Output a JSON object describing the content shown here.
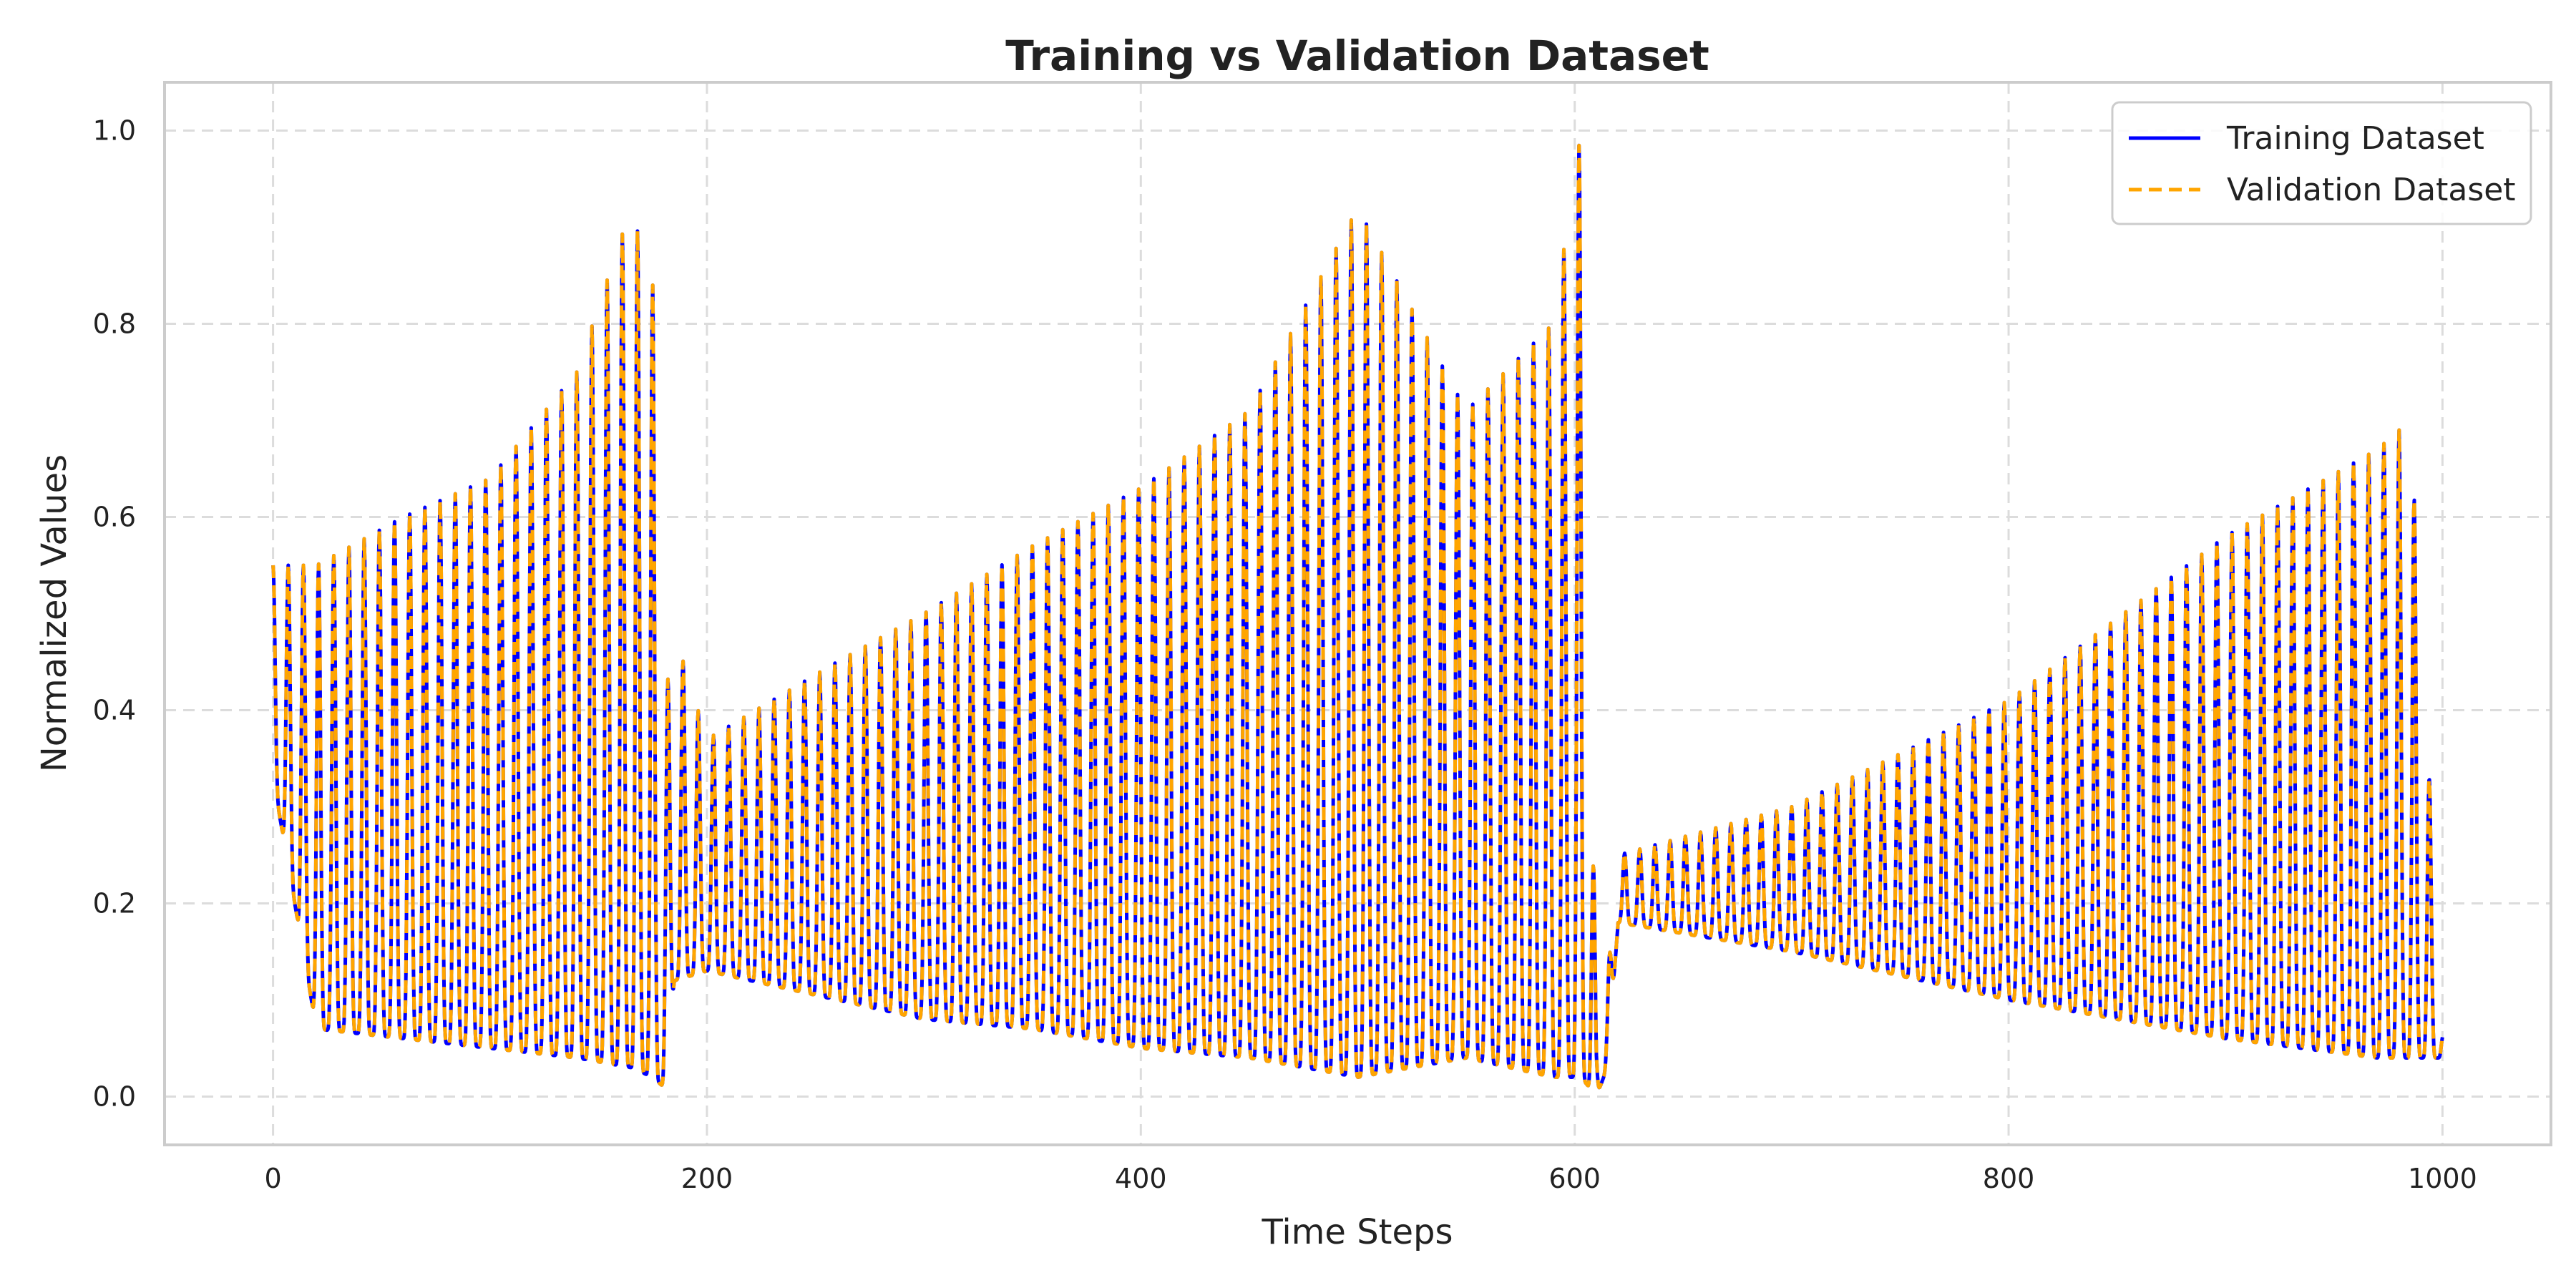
{
  "chart_data": {
    "type": "line",
    "title": "Training vs Validation Dataset",
    "xlabel": "Time Steps",
    "ylabel": "Normalized Values",
    "xlim": [
      -50,
      1050
    ],
    "ylim": [
      -0.05,
      1.05
    ],
    "xticks": [
      0,
      200,
      400,
      600,
      800,
      1000
    ],
    "yticks": [
      0.0,
      0.2,
      0.4,
      0.6,
      0.8,
      1.0
    ],
    "xtick_labels": [
      "0",
      "200",
      "400",
      "600",
      "800",
      "1000"
    ],
    "ytick_labels": [
      "0.0",
      "0.2",
      "0.4",
      "0.6",
      "0.8",
      "1.0"
    ],
    "grid": true,
    "legend_position": "top-right",
    "period": 7,
    "series": [
      {
        "name": "Training Dataset",
        "color": "#0000ff",
        "style": "solid"
      },
      {
        "name": "Validation Dataset",
        "color": "#ffa500",
        "style": "dashed"
      }
    ],
    "envelope": {
      "x": [
        0,
        20,
        60,
        100,
        140,
        165,
        175,
        180,
        185,
        200,
        260,
        300,
        350,
        400,
        450,
        500,
        550,
        590,
        603,
        610,
        615,
        620,
        700,
        800,
        900,
        970,
        985,
        1000
      ],
      "peak": [
        0.55,
        0.55,
        0.6,
        0.64,
        0.75,
        0.92,
        0.84,
        0.4,
        0.48,
        0.37,
        0.45,
        0.5,
        0.57,
        0.63,
        0.71,
        0.92,
        0.71,
        0.8,
        1.0,
        0.08,
        0.12,
        0.25,
        0.3,
        0.41,
        0.58,
        0.67,
        0.7,
        0.08
      ],
      "trough": [
        0.33,
        0.07,
        0.06,
        0.05,
        0.04,
        0.03,
        0.02,
        0.01,
        0.12,
        0.13,
        0.1,
        0.08,
        0.07,
        0.05,
        0.04,
        0.02,
        0.04,
        0.02,
        0.02,
        0.0,
        0.03,
        0.18,
        0.15,
        0.1,
        0.06,
        0.04,
        0.04,
        0.04
      ]
    }
  }
}
